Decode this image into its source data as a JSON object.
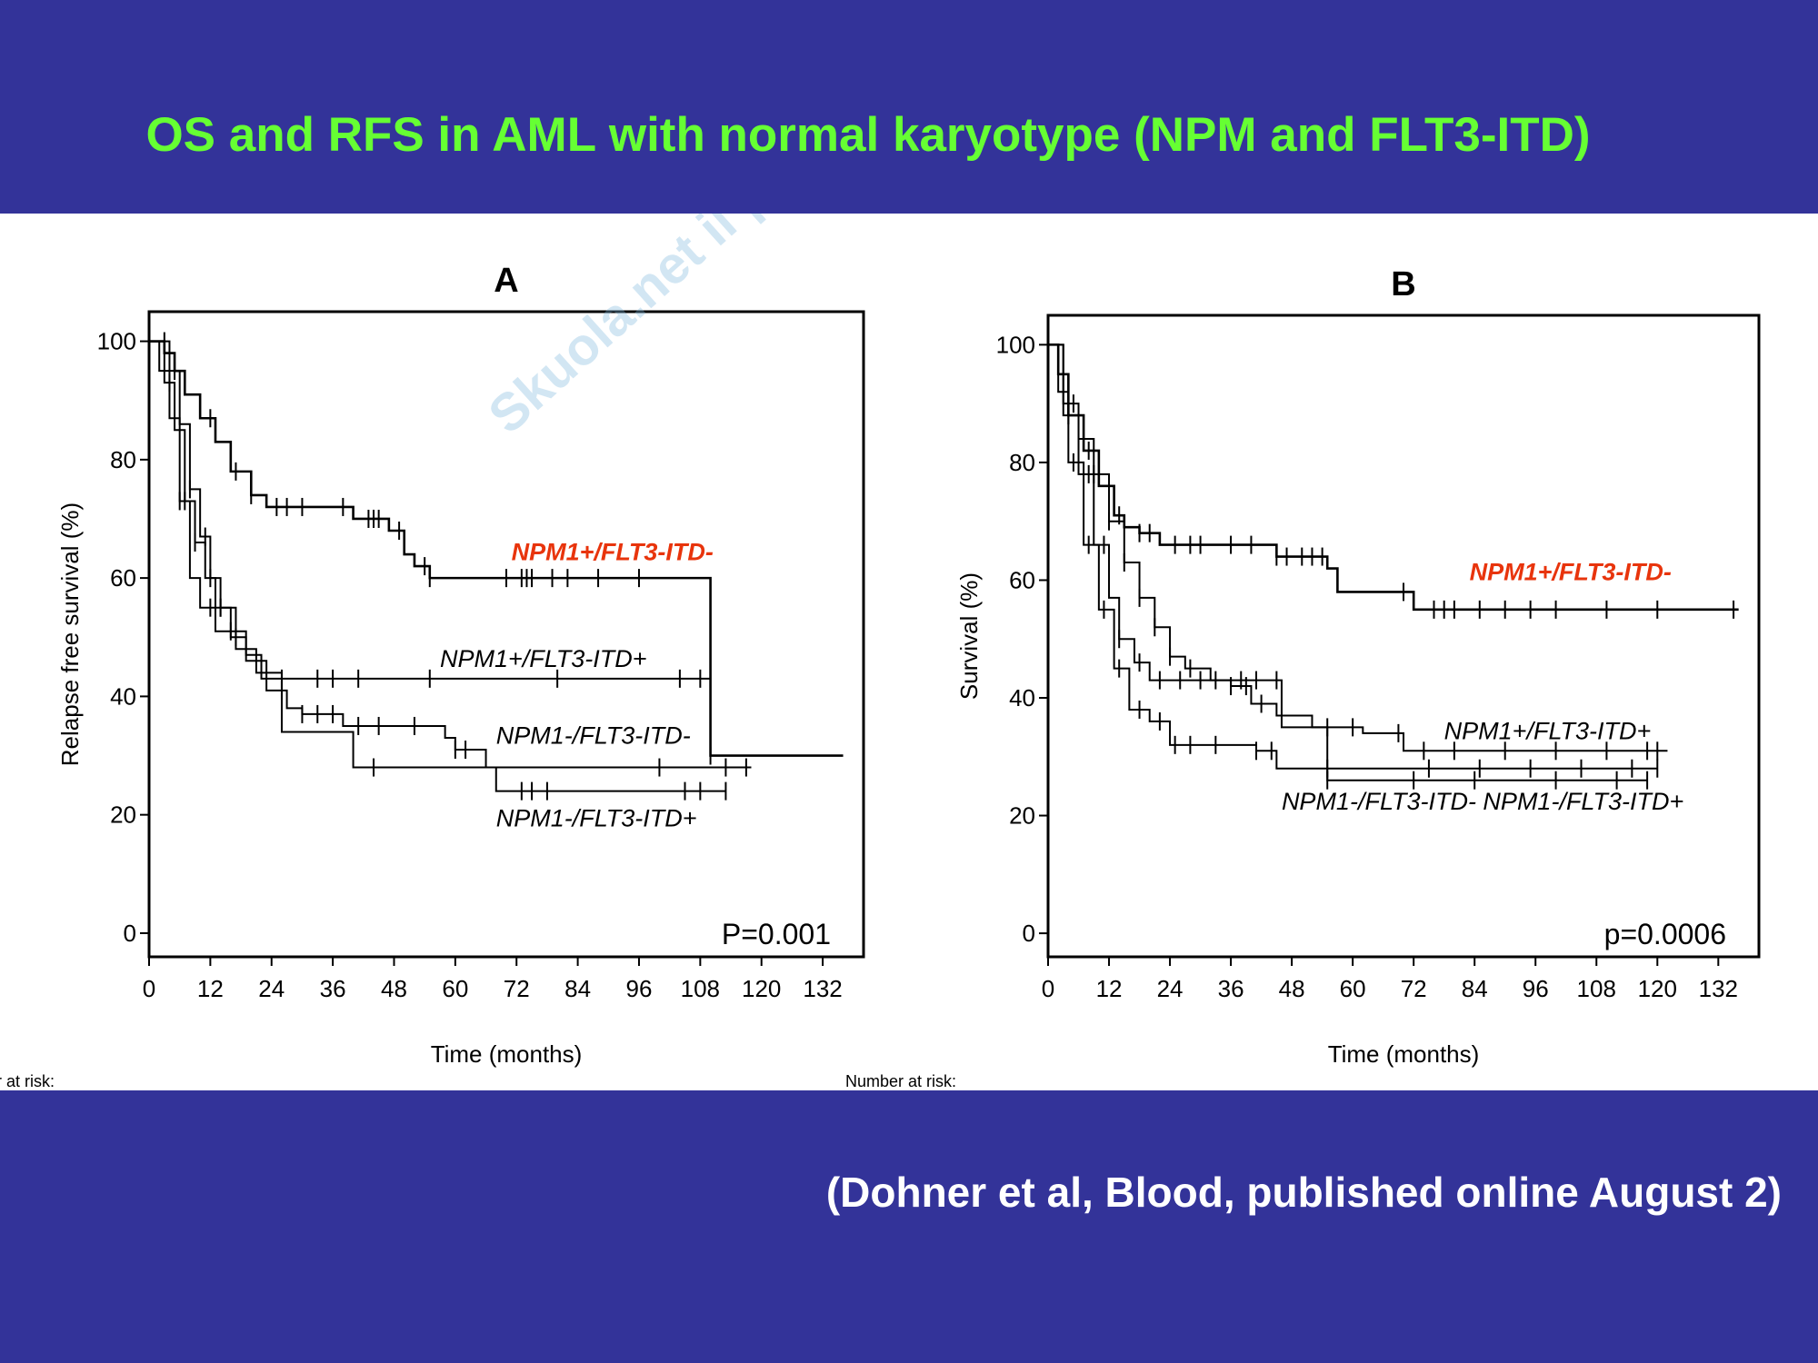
{
  "slide": {
    "title": "OS and RFS in AML with normal karyotype (NPM and FLT3-ITD)",
    "citation": "(Dohner et al, Blood, published online August 2)",
    "watermark_text": "Skuola.net il paradiso dello studente",
    "colors": {
      "background": "#333399",
      "title": "#66ff33",
      "citation": "#ffffff",
      "highlight": "#e8340c"
    }
  },
  "chart_data": [
    {
      "type": "line",
      "panel_label": "A",
      "ylabel": "Relapse free survival (%)",
      "xlabel": "Time (months)",
      "xticks": [
        0,
        12,
        24,
        36,
        48,
        60,
        72,
        84,
        96,
        108,
        120,
        132
      ],
      "yticks": [
        0,
        20,
        40,
        60,
        80,
        100
      ],
      "xlim": [
        0,
        140
      ],
      "ylim": [
        -4,
        105
      ],
      "p_value": "P=0.001",
      "number_at_risk_label": "Number at risk:",
      "series": [
        {
          "name": "NPM1+/FLT3-ITD-",
          "highlight": true,
          "x": [
            0,
            3,
            5,
            7,
            10,
            13,
            16,
            20,
            23,
            27,
            35,
            40,
            47,
            50,
            52,
            55,
            110,
            110,
            136
          ],
          "y": [
            100,
            98,
            95,
            91,
            87,
            83,
            78,
            74,
            72,
            72,
            72,
            70,
            68,
            64,
            62,
            60,
            60,
            30,
            30
          ],
          "censor_x": [
            12,
            17,
            20,
            25,
            27,
            30,
            38,
            43,
            44,
            45,
            49,
            54,
            55,
            70,
            73,
            74,
            75,
            79,
            82,
            88,
            96,
            110
          ]
        },
        {
          "name": "NPM1+/FLT3-ITD+",
          "highlight": false,
          "x": [
            0,
            4,
            6,
            8,
            10,
            12,
            14,
            17,
            19,
            22,
            110
          ],
          "y": [
            100,
            95,
            86,
            75,
            67,
            60,
            55,
            51,
            47,
            43,
            43
          ],
          "censor_x": [
            3,
            5,
            8,
            11,
            14,
            26,
            33,
            36,
            41,
            55,
            80,
            104,
            108
          ]
        },
        {
          "name": "NPM1-/FLT3-ITD-",
          "highlight": false,
          "x": [
            0,
            3,
            5,
            7,
            9,
            11,
            13,
            16,
            19,
            23,
            27,
            30,
            38,
            50,
            58,
            60,
            66,
            118
          ],
          "y": [
            100,
            93,
            85,
            73,
            66,
            60,
            55,
            50,
            46,
            41,
            38,
            37,
            35,
            35,
            33,
            31,
            28,
            28
          ],
          "censor_x": [
            4,
            7,
            9,
            12,
            14,
            17,
            26,
            30,
            33,
            36,
            41,
            45,
            52,
            60,
            62,
            100,
            113,
            117
          ]
        },
        {
          "name": "NPM1-/FLT3-ITD+",
          "highlight": false,
          "x": [
            0,
            2,
            4,
            6,
            8,
            10,
            13,
            17,
            21,
            26,
            36,
            40,
            68,
            68,
            113
          ],
          "y": [
            100,
            95,
            87,
            73,
            60,
            55,
            51,
            48,
            44,
            34,
            34,
            28,
            28,
            24,
            24
          ],
          "censor_x": [
            6,
            12,
            16,
            44,
            73,
            75,
            78,
            105,
            108,
            113
          ]
        }
      ],
      "labels": [
        {
          "text": "NPM1+/FLT3-ITD-",
          "x": 71,
          "y": 63,
          "highlight": true
        },
        {
          "text": "NPM1+/FLT3-ITD+",
          "x": 57,
          "y": 45,
          "highlight": false
        },
        {
          "text": "NPM1-/FLT3-ITD-",
          "x": 68,
          "y": 32,
          "highlight": false
        },
        {
          "text": "NPM1-/FLT3-ITD+",
          "x": 68,
          "y": 18,
          "highlight": false
        }
      ]
    },
    {
      "type": "line",
      "panel_label": "B",
      "ylabel": "Survival (%)",
      "xlabel": "Time (months)",
      "xticks": [
        0,
        12,
        24,
        36,
        48,
        60,
        72,
        84,
        96,
        108,
        120,
        132
      ],
      "yticks": [
        0,
        20,
        40,
        60,
        80,
        100
      ],
      "xlim": [
        0,
        140
      ],
      "ylim": [
        -4,
        105
      ],
      "p_value": "p=0.0006",
      "number_at_risk_label": "Number at risk:",
      "series": [
        {
          "name": "NPM1+/FLT3-ITD-",
          "highlight": true,
          "x": [
            0,
            2,
            4,
            7,
            10,
            13,
            15,
            18,
            22,
            27,
            35,
            45,
            52,
            55,
            57,
            70,
            72,
            136
          ],
          "y": [
            100,
            95,
            88,
            82,
            76,
            71,
            69,
            68,
            66,
            66,
            66,
            64,
            64,
            62,
            58,
            58,
            55,
            55
          ],
          "censor_x": [
            8,
            14,
            18,
            20,
            25,
            28,
            30,
            36,
            40,
            45,
            47,
            50,
            52,
            54,
            70,
            76,
            78,
            80,
            85,
            90,
            95,
            100,
            110,
            120,
            135
          ]
        },
        {
          "name": "NPM1+/FLT3-ITD+",
          "highlight": false,
          "x": [
            0,
            3,
            6,
            9,
            12,
            15,
            18,
            21,
            24,
            27,
            32,
            36,
            40,
            45,
            52,
            62,
            70,
            122
          ],
          "y": [
            100,
            90,
            84,
            78,
            70,
            63,
            57,
            52,
            47,
            45,
            43,
            42,
            39,
            37,
            35,
            34,
            31,
            31
          ],
          "censor_x": [
            5,
            9,
            12,
            15,
            18,
            21,
            24,
            28,
            33,
            36,
            39,
            42,
            55,
            60,
            69,
            74,
            80,
            90,
            100,
            110,
            118,
            120
          ]
        },
        {
          "name": "NPM1-/FLT3-ITD-",
          "highlight": false,
          "x": [
            0,
            3,
            6,
            9,
            12,
            14,
            17,
            20,
            26,
            40,
            46,
            55,
            118
          ],
          "y": [
            100,
            88,
            78,
            66,
            57,
            50,
            46,
            43,
            43,
            43,
            35,
            26,
            26
          ],
          "censor_x": [
            4,
            8,
            11,
            14,
            18,
            22,
            26,
            30,
            38,
            41,
            45,
            55,
            72,
            84,
            100,
            112,
            118
          ]
        },
        {
          "name": "NPM1-/FLT3-ITD+",
          "highlight": false,
          "x": [
            0,
            2,
            4,
            7,
            10,
            13,
            16,
            20,
            24,
            36,
            41,
            45,
            55,
            120
          ],
          "y": [
            100,
            92,
            80,
            66,
            55,
            45,
            38,
            36,
            32,
            32,
            31,
            28,
            28,
            28
          ],
          "censor_x": [
            5,
            8,
            11,
            14,
            18,
            22,
            25,
            28,
            33,
            41,
            44,
            55,
            75,
            85,
            95,
            105,
            115,
            120
          ]
        }
      ],
      "labels": [
        {
          "text": "NPM1+/FLT3-ITD-",
          "x": 83,
          "y": 60,
          "highlight": true
        },
        {
          "text": "NPM1+/FLT3-ITD+",
          "x": 78,
          "y": 33,
          "highlight": false
        },
        {
          "text": "NPM1-/FLT3-ITD- NPM1-/FLT3-ITD+",
          "x": 46,
          "y": 21,
          "highlight": false
        }
      ]
    }
  ]
}
